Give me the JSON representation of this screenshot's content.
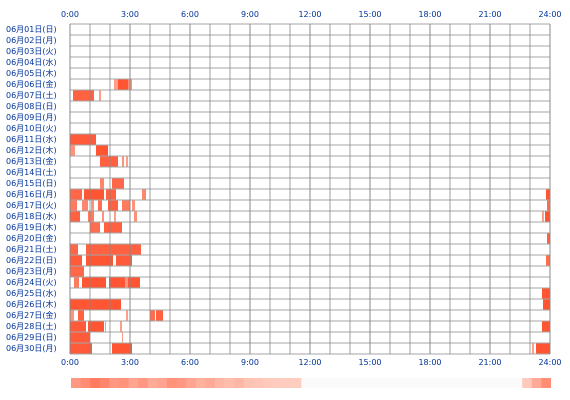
{
  "chart_data": {
    "type": "heatmap",
    "title": "",
    "x_axis": {
      "tick_labels": [
        "0:00",
        "3:00",
        "6:00",
        "9:00",
        "12:00",
        "15:00",
        "18:00",
        "21:00",
        "24:00"
      ],
      "range_hours": [
        0,
        24
      ]
    },
    "y_axis": {
      "categories": [
        "06月01日(日)",
        "06月02日(月)",
        "06月03日(火)",
        "06月04日(水)",
        "06月05日(木)",
        "06月06日(金)",
        "06月07日(土)",
        "06月08日(日)",
        "06月09日(月)",
        "06月10日(火)",
        "06月11日(水)",
        "06月12日(木)",
        "06月13日(金)",
        "06月14日(土)",
        "06月15日(日)",
        "06月16日(月)",
        "06月17日(火)",
        "06月18日(水)",
        "06月19日(木)",
        "06月20日(金)",
        "06月21日(土)",
        "06月22日(日)",
        "06月23日(月)",
        "06月24日(火)",
        "06月25日(水)",
        "06月26日(木)",
        "06月27日(金)",
        "06月28日(土)",
        "06月29日(日)",
        "06月30日(月)"
      ]
    },
    "grid": true,
    "intensity_legend": "bottom",
    "colors": {
      "high": "#ff5533",
      "mid": "#ff8866",
      "low": "#ffcfc2",
      "grid": "#888888"
    },
    "series": [
      {
        "day": "06月06日(金)",
        "spans": [
          [
            2.2,
            2.4,
            0.4
          ],
          [
            2.4,
            2.9,
            1.0
          ],
          [
            2.9,
            3.1,
            0.5
          ]
        ]
      },
      {
        "day": "06月07日(土)",
        "spans": [
          [
            0.15,
            1.2,
            0.9
          ],
          [
            1.45,
            1.55,
            0.4
          ]
        ]
      },
      {
        "day": "06月11日(水)",
        "spans": [
          [
            0.0,
            1.3,
            0.95
          ]
        ]
      },
      {
        "day": "06月12日(木)",
        "spans": [
          [
            1.3,
            1.9,
            1.0
          ],
          [
            0.0,
            0.25,
            0.5
          ]
        ]
      },
      {
        "day": "06月13日(金)",
        "spans": [
          [
            1.5,
            2.4,
            0.9
          ],
          [
            2.6,
            2.7,
            0.5
          ],
          [
            2.8,
            2.9,
            0.4
          ]
        ]
      },
      {
        "day": "06月15日(日)",
        "spans": [
          [
            1.5,
            1.7,
            0.6
          ],
          [
            2.1,
            2.7,
            0.85
          ]
        ]
      },
      {
        "day": "06月16日(月)",
        "spans": [
          [
            0.0,
            0.6,
            0.85
          ],
          [
            0.7,
            1.7,
            1.0
          ],
          [
            1.8,
            2.3,
            0.9
          ],
          [
            3.6,
            3.8,
            0.6
          ],
          [
            23.8,
            24.0,
            1.0
          ]
        ]
      },
      {
        "day": "06月17日(火)",
        "spans": [
          [
            0.0,
            0.35,
            0.7
          ],
          [
            0.6,
            0.9,
            0.6
          ],
          [
            1.05,
            1.2,
            0.5
          ],
          [
            1.4,
            1.6,
            0.8
          ],
          [
            1.9,
            2.4,
            0.9
          ],
          [
            2.6,
            3.0,
            0.7
          ],
          [
            3.1,
            3.25,
            0.5
          ],
          [
            23.85,
            24.0,
            0.8
          ]
        ]
      },
      {
        "day": "06月18日(水)",
        "spans": [
          [
            0.0,
            0.5,
            0.9
          ],
          [
            0.9,
            1.2,
            0.7
          ],
          [
            1.6,
            1.7,
            0.5
          ],
          [
            2.2,
            2.3,
            0.4
          ],
          [
            3.2,
            3.35,
            0.5
          ],
          [
            23.6,
            23.7,
            0.4
          ],
          [
            23.75,
            24.0,
            1.0
          ]
        ]
      },
      {
        "day": "06月19日(木)",
        "spans": [
          [
            1.0,
            1.5,
            0.8
          ],
          [
            1.7,
            2.6,
            0.9
          ]
        ]
      },
      {
        "day": "06月20日(金)",
        "spans": [
          [
            23.85,
            24.0,
            0.9
          ]
        ]
      },
      {
        "day": "06月21日(土)",
        "spans": [
          [
            0.0,
            0.4,
            0.85
          ],
          [
            0.8,
            3.55,
            0.9
          ]
        ]
      },
      {
        "day": "06月22日(日)",
        "spans": [
          [
            0.0,
            0.6,
            0.95
          ],
          [
            0.8,
            2.15,
            1.0
          ],
          [
            2.3,
            3.1,
            0.95
          ],
          [
            23.8,
            24.0,
            0.8
          ]
        ]
      },
      {
        "day": "06月23日(月)",
        "spans": [
          [
            0.0,
            0.7,
            0.85
          ]
        ]
      },
      {
        "day": "06月24日(火)",
        "spans": [
          [
            0.2,
            0.45,
            0.7
          ],
          [
            0.6,
            1.8,
            1.0
          ],
          [
            1.95,
            3.5,
            1.0
          ],
          [
            2.75,
            2.9,
            0.5
          ]
        ]
      },
      {
        "day": "06月25日(水)",
        "spans": [
          [
            23.6,
            24.0,
            1.0
          ]
        ]
      },
      {
        "day": "06月26日(木)",
        "spans": [
          [
            0.0,
            2.55,
            1.0
          ],
          [
            23.65,
            24.0,
            1.0
          ]
        ]
      },
      {
        "day": "06月27日(金)",
        "spans": [
          [
            0.0,
            0.2,
            0.5
          ],
          [
            0.4,
            0.7,
            0.9
          ],
          [
            2.8,
            2.9,
            0.4
          ],
          [
            4.0,
            4.25,
            0.8
          ],
          [
            4.3,
            4.65,
            0.9
          ]
        ]
      },
      {
        "day": "06月28日(土)",
        "spans": [
          [
            0.0,
            0.8,
            0.95
          ],
          [
            0.9,
            1.7,
            1.0
          ],
          [
            1.75,
            1.8,
            0.4
          ],
          [
            2.5,
            2.6,
            0.4
          ],
          [
            23.6,
            24.0,
            1.0
          ]
        ]
      },
      {
        "day": "06月29日(日)",
        "spans": [
          [
            0.0,
            1.0,
            0.95
          ],
          [
            2.6,
            2.65,
            0.4
          ]
        ]
      },
      {
        "day": "06月30日(月)",
        "spans": [
          [
            0.0,
            1.1,
            0.95
          ],
          [
            2.1,
            3.1,
            1.0
          ],
          [
            23.1,
            23.2,
            0.4
          ],
          [
            23.3,
            24.0,
            1.0
          ]
        ]
      }
    ],
    "intensity_profile": [
      0.45,
      0.55,
      0.7,
      0.6,
      0.45,
      0.5,
      0.35,
      0.45,
      0.3,
      0.35,
      0.5,
      0.45,
      0.35,
      0.25,
      0.3,
      0.2,
      0.15,
      0.2,
      0.1,
      0.08,
      0.05,
      0.03,
      0.02,
      0.02,
      0,
      0,
      0,
      0,
      0,
      0,
      0,
      0,
      0,
      0,
      0,
      0,
      0,
      0,
      0,
      0,
      0,
      0,
      0,
      0,
      0,
      0,
      0,
      0.05,
      0.3,
      0.55
    ]
  }
}
